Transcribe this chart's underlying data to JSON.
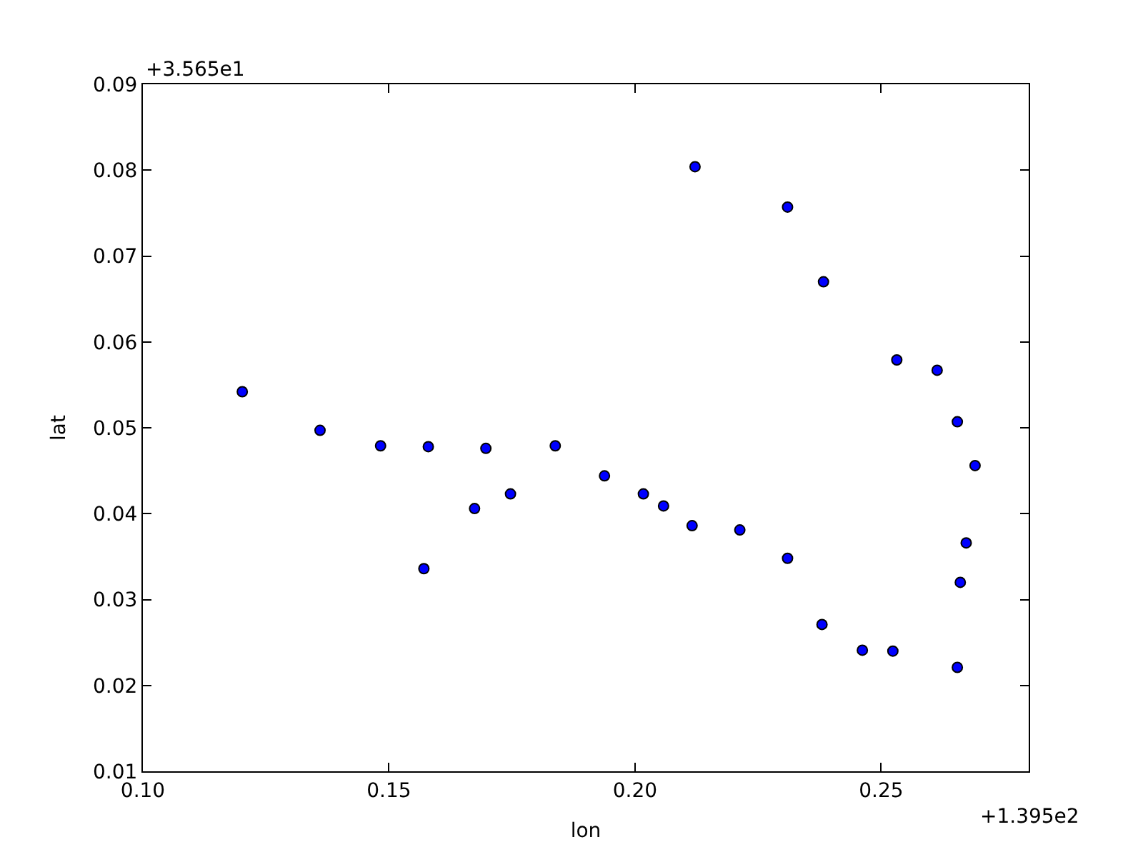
{
  "chart_data": {
    "type": "scatter",
    "xlabel": "lon",
    "ylabel": "lat",
    "annotations": [
      "+3.565e1",
      "+1.395e2"
    ],
    "x": [
      0.1202,
      0.136,
      0.1483,
      0.158,
      0.1697,
      0.1838,
      0.1571,
      0.1674,
      0.1747,
      0.1938,
      0.2017,
      0.2058,
      0.2116,
      0.2213,
      0.231,
      0.238,
      0.2462,
      0.2524,
      0.2655,
      0.2661,
      0.2673,
      0.2691,
      0.2655,
      0.2614,
      0.2532,
      0.2383,
      0.231,
      0.2122
    ],
    "values": [
      0.0542,
      0.0497,
      0.0479,
      0.0478,
      0.0476,
      0.0479,
      0.0336,
      0.0406,
      0.0423,
      0.0444,
      0.0423,
      0.0409,
      0.0386,
      0.0381,
      0.0348,
      0.0271,
      0.0241,
      0.024,
      0.0221,
      0.032,
      0.0366,
      0.0456,
      0.0507,
      0.0567,
      0.0579,
      0.067,
      0.0757,
      0.0804
    ],
    "color": "#0000ff",
    "marker": "circle",
    "xlim": [
      0.1,
      0.28
    ],
    "xticks": [
      {
        "value": 0.1,
        "label": "0.10"
      },
      0.15,
      {
        "value": 0.2,
        "label": "0.20"
      },
      0.25
    ],
    "ylim": [
      0.01,
      0.09
    ],
    "yticks": [
      0.01,
      0.02,
      0.03,
      0.04,
      0.05,
      0.06,
      0.07,
      0.08,
      0.09
    ]
  }
}
